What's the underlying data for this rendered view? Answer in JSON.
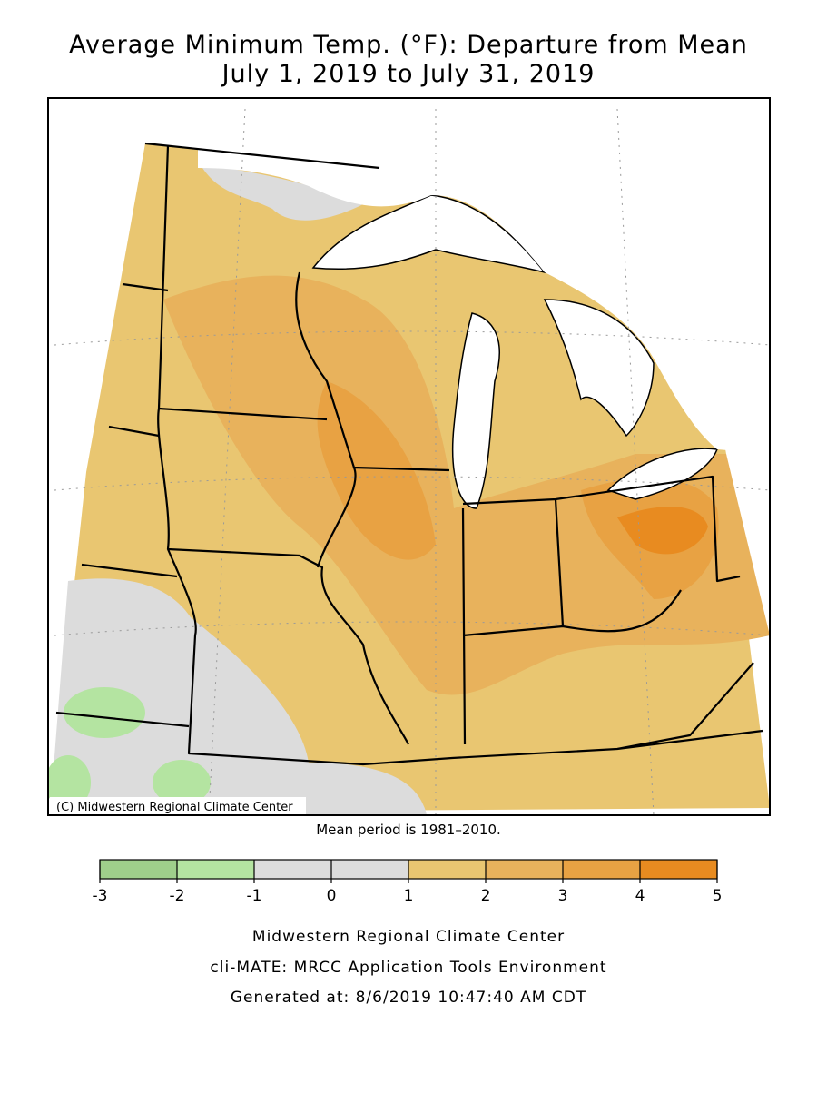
{
  "header": {
    "title": "Average Minimum Temp. (°F): Departure from Mean",
    "subtitle": "July 1, 2019 to July 31, 2019"
  },
  "map": {
    "credit": "(C) Midwestern Regional Climate Center",
    "note": "Mean period is 1981–2010."
  },
  "legend": {
    "ticks": [
      -3,
      -2,
      -1,
      0,
      1,
      2,
      3,
      4,
      5
    ],
    "colors": [
      "#9fcf8b",
      "#b4e4a1",
      "#dcdcdc",
      "#dcdcdc",
      "#e9c671",
      "#e8b25c",
      "#e8a243",
      "#e88b20"
    ]
  },
  "footer": {
    "lines": [
      "Midwestern Regional Climate Center",
      "cli-MATE: MRCC Application Tools Environment",
      "Generated at: 8/6/2019 10:47:40 AM CDT"
    ]
  }
}
